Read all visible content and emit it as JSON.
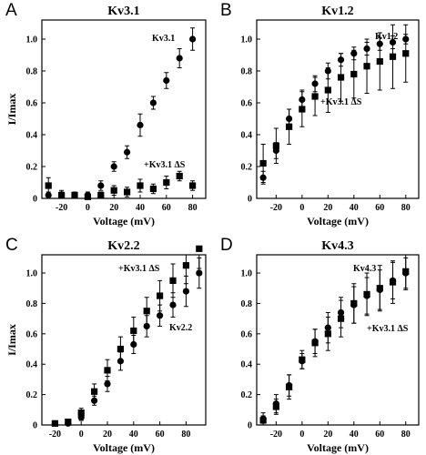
{
  "chart_data": [
    {
      "type": "scatter",
      "panel": "A",
      "title": "Kv3.1",
      "xlabel": "Voltage (mV)",
      "ylabel": "I/Imax",
      "xlim": [
        -35,
        90
      ],
      "ylim": [
        0,
        1.12
      ],
      "xticks": [
        -20,
        0,
        20,
        40,
        60,
        80
      ],
      "yticks": [
        0,
        0.2,
        0.4,
        0.6,
        0.8,
        1.0
      ],
      "ytick_labels": [
        "0",
        "0.2",
        "0.4",
        "0.6",
        "0.8",
        "1.0"
      ],
      "series": [
        {
          "name": "Kv3.1",
          "marker": "circle",
          "x": [
            -30,
            -20,
            -10,
            0,
            10,
            20,
            30,
            40,
            50,
            60,
            70,
            80
          ],
          "y": [
            0.02,
            0.02,
            0.02,
            0.02,
            0.08,
            0.2,
            0.29,
            0.46,
            0.6,
            0.74,
            0.88,
            1.0
          ],
          "err": [
            0.02,
            0.02,
            0.02,
            0.02,
            0.03,
            0.03,
            0.04,
            0.07,
            0.04,
            0.05,
            0.06,
            0.07
          ]
        },
        {
          "name": "+Kv3.1 ΔS",
          "marker": "square",
          "x": [
            -30,
            -20,
            -10,
            0,
            10,
            20,
            30,
            40,
            50,
            60,
            70,
            80
          ],
          "y": [
            0.08,
            0.02,
            0.02,
            0.01,
            0.02,
            0.05,
            0.04,
            0.08,
            0.06,
            0.1,
            0.14,
            0.08
          ],
          "err": [
            0.05,
            0.03,
            0.02,
            0.02,
            0.02,
            0.03,
            0.03,
            0.04,
            0.03,
            0.04,
            0.03,
            0.03
          ]
        }
      ]
    },
    {
      "type": "scatter",
      "panel": "B",
      "title": "Kv1.2",
      "xlabel": "Voltage (mV)",
      "ylabel": "",
      "xlim": [
        -35,
        90
      ],
      "ylim": [
        0,
        1.12
      ],
      "xticks": [
        -20,
        0,
        20,
        40,
        60,
        80
      ],
      "yticks": [
        0,
        0.2,
        0.4,
        0.6,
        0.8,
        1.0
      ],
      "ytick_labels": [
        "0",
        "0.2",
        "0.4",
        "0.6",
        "0.8",
        "1.0"
      ],
      "series": [
        {
          "name": "Kv1.2",
          "marker": "circle",
          "x": [
            -30,
            -20,
            -10,
            0,
            10,
            20,
            30,
            40,
            50,
            60,
            70,
            80
          ],
          "y": [
            0.13,
            0.3,
            0.5,
            0.62,
            0.72,
            0.8,
            0.87,
            0.91,
            0.94,
            0.97,
            0.98,
            1.0
          ],
          "err": [
            0.04,
            0.05,
            0.06,
            0.06,
            0.05,
            0.05,
            0.04,
            0.04,
            0.04,
            0.04,
            0.04,
            0.03
          ]
        },
        {
          "name": "+Kv3.1 ΔS",
          "marker": "square",
          "x": [
            -30,
            -20,
            -10,
            0,
            10,
            20,
            30,
            40,
            50,
            60,
            70,
            80
          ],
          "y": [
            0.22,
            0.33,
            0.45,
            0.56,
            0.64,
            0.68,
            0.76,
            0.78,
            0.83,
            0.86,
            0.89,
            0.91
          ],
          "err": [
            0.12,
            0.11,
            0.11,
            0.11,
            0.12,
            0.14,
            0.15,
            0.15,
            0.17,
            0.18,
            0.2,
            0.18
          ]
        }
      ]
    },
    {
      "type": "scatter",
      "panel": "C",
      "title": "Kv2.2",
      "xlabel": "Voltage (mV)",
      "ylabel": "I/Imax",
      "xlim": [
        -30,
        95
      ],
      "ylim": [
        0,
        1.12
      ],
      "xticks": [
        -20,
        0,
        20,
        40,
        60,
        80
      ],
      "yticks": [
        0,
        0.2,
        0.4,
        0.6,
        0.8,
        1.0
      ],
      "ytick_labels": [
        "0",
        "0.2",
        "0.4",
        "0.6",
        "0.8",
        "1.0"
      ],
      "series": [
        {
          "name": "Kv2.2",
          "marker": "circle",
          "x": [
            -20,
            -10,
            0,
            10,
            20,
            30,
            40,
            50,
            60,
            70,
            80,
            90
          ],
          "y": [
            0.01,
            0.01,
            0.05,
            0.16,
            0.27,
            0.42,
            0.53,
            0.65,
            0.72,
            0.79,
            0.88,
            1.0
          ],
          "err": [
            0.01,
            0.01,
            0.02,
            0.03,
            0.05,
            0.06,
            0.06,
            0.07,
            0.07,
            0.08,
            0.1,
            0.1
          ]
        },
        {
          "name": "+Kv3.1 ΔS",
          "marker": "square",
          "x": [
            -20,
            -10,
            0,
            10,
            20,
            30,
            40,
            50,
            60,
            70,
            80,
            90
          ],
          "y": [
            0.01,
            0.02,
            0.08,
            0.22,
            0.36,
            0.5,
            0.62,
            0.75,
            0.85,
            0.95,
            1.05,
            1.16
          ],
          "err": [
            0.01,
            0.01,
            0.03,
            0.05,
            0.07,
            0.08,
            0.09,
            0.09,
            0.1,
            0.11,
            0.12,
            0.13
          ]
        }
      ]
    },
    {
      "type": "scatter",
      "panel": "D",
      "title": "Kv4.3",
      "xlabel": "Voltage (mV)",
      "ylabel": "",
      "xlim": [
        -35,
        90
      ],
      "ylim": [
        0,
        1.12
      ],
      "xticks": [
        -20,
        0,
        20,
        40,
        60,
        80
      ],
      "yticks": [
        0,
        0.2,
        0.4,
        0.6,
        0.8,
        1.0
      ],
      "ytick_labels": [
        "0",
        "0.2",
        "0.4",
        "0.6",
        "0.8",
        "1.0"
      ],
      "series": [
        {
          "name": "Kv4.3",
          "marker": "circle",
          "x": [
            -30,
            -20,
            -10,
            0,
            10,
            20,
            30,
            40,
            50,
            60,
            70,
            80
          ],
          "y": [
            0.04,
            0.14,
            0.26,
            0.42,
            0.55,
            0.64,
            0.74,
            0.79,
            0.85,
            0.89,
            0.95,
            1.0
          ],
          "err": [
            0.04,
            0.06,
            0.07,
            0.05,
            0.08,
            0.1,
            0.1,
            0.12,
            0.12,
            0.13,
            0.12,
            0.1
          ]
        },
        {
          "name": "+Kv3.1 ΔS",
          "marker": "square",
          "x": [
            -30,
            -20,
            -10,
            0,
            10,
            20,
            30,
            40,
            50,
            60,
            70,
            80
          ],
          "y": [
            0.03,
            0.12,
            0.25,
            0.43,
            0.54,
            0.6,
            0.7,
            0.8,
            0.86,
            0.9,
            0.94,
            1.01
          ],
          "err": [
            0.03,
            0.05,
            0.08,
            0.06,
            0.09,
            0.11,
            0.12,
            0.13,
            0.14,
            0.15,
            0.14,
            0.12
          ]
        }
      ]
    }
  ]
}
